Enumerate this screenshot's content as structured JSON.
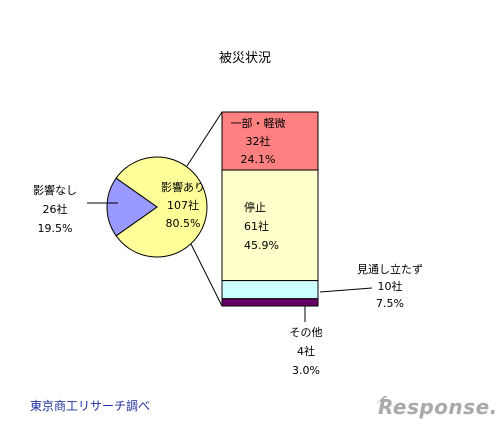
{
  "chart_data": {
    "type": "pie",
    "title": "被災状況",
    "pie": {
      "slices": [
        {
          "key": "affected",
          "lines": [
            "影響あり",
            "107社",
            "80.5%"
          ],
          "value": 107,
          "percent": 80.5,
          "color": "#ffff99"
        },
        {
          "key": "unaffected",
          "lines": [
            "影響なし",
            "26社",
            "19.5%"
          ],
          "value": 26,
          "percent": 19.5,
          "color": "#9999ff"
        }
      ]
    },
    "breakdown": {
      "of": "影響あり",
      "segments": [
        {
          "key": "partial",
          "lines": [
            "一部・軽微",
            "32社",
            "24.1%"
          ],
          "value": 32,
          "percent": 24.1,
          "color": "#ff8080"
        },
        {
          "key": "stopped",
          "lines": [
            "停止",
            "61社",
            "45.9%"
          ],
          "value": 61,
          "percent": 45.9,
          "color": "#ffffcc"
        },
        {
          "key": "unknown",
          "lines": [
            "見通し立たず",
            "10社",
            "7.5%"
          ],
          "value": 10,
          "percent": 7.5,
          "color": "#ccffff"
        },
        {
          "key": "other",
          "lines": [
            "その他",
            "4社",
            "3.0%"
          ],
          "value": 4,
          "percent": 3.0,
          "color": "#660066"
        }
      ]
    }
  },
  "source": "東京商工リサーチ調べ",
  "watermark": "Response."
}
